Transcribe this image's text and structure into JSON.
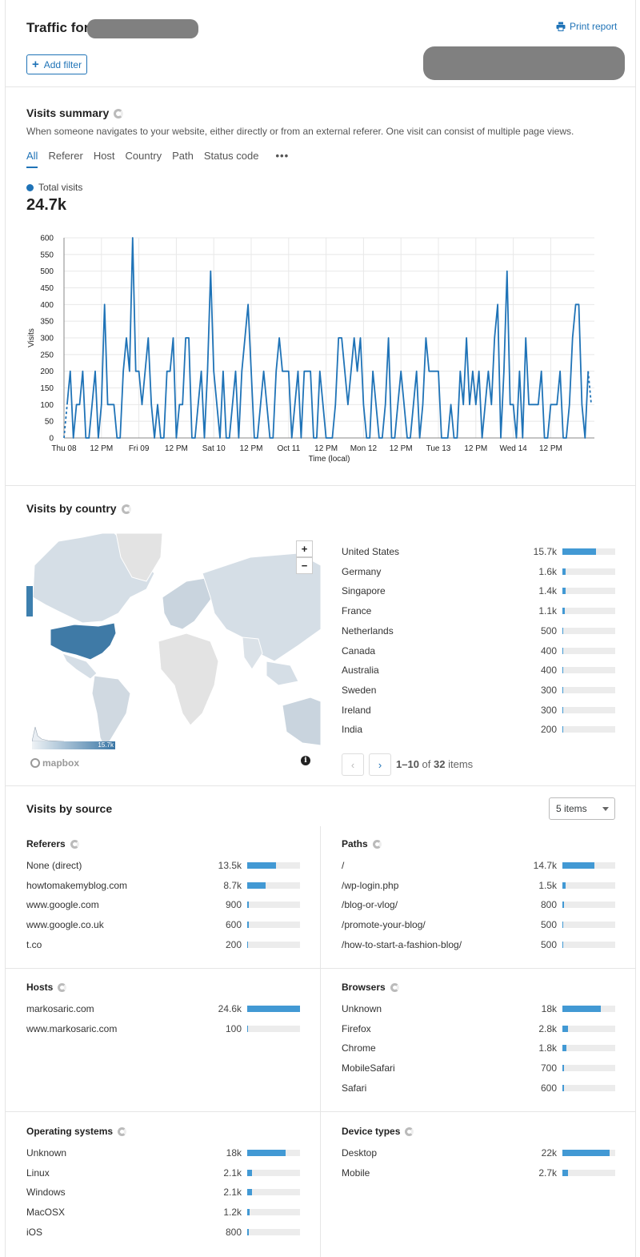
{
  "header": {
    "title": "Traffic for",
    "print_label": "Print report",
    "add_filter_label": "Add filter"
  },
  "visits_summary": {
    "title": "Visits summary",
    "description": "When someone navigates to your website, either directly or from an external referer. One visit can consist of multiple page views.",
    "tabs": [
      "All",
      "Referer",
      "Host",
      "Country",
      "Path",
      "Status code"
    ],
    "active_tab": "All",
    "legend_label": "Total visits",
    "total": "24.7k"
  },
  "chart_data": {
    "type": "line",
    "title": "",
    "ylabel": "Visits",
    "xlabel": "Time (local)",
    "ylim": [
      0,
      600
    ],
    "yticks": [
      0,
      50,
      100,
      150,
      200,
      250,
      300,
      350,
      400,
      450,
      500,
      550,
      600
    ],
    "xtick_labels": [
      "Thu 08",
      "12 PM",
      "Fri 09",
      "12 PM",
      "Sat 10",
      "12 PM",
      "Oct 11",
      "12 PM",
      "Mon 12",
      "12 PM",
      "Tue 13",
      "12 PM",
      "Wed 14",
      "12 PM"
    ],
    "x_unit": "hours since Thu 08 00:00",
    "x_range": [
      0,
      170
    ],
    "series": [
      {
        "name": "Total visits",
        "color": "#1f73b7",
        "x": [
          0,
          1,
          2,
          3,
          4,
          5,
          6,
          7,
          8,
          9,
          10,
          11,
          12,
          13,
          14,
          15,
          16,
          17,
          18,
          19,
          20,
          21,
          22,
          23,
          24,
          25,
          26,
          27,
          28,
          29,
          30,
          31,
          32,
          33,
          34,
          35,
          36,
          37,
          38,
          39,
          40,
          41,
          42,
          43,
          44,
          45,
          46,
          47,
          48,
          49,
          50,
          51,
          52,
          53,
          54,
          55,
          56,
          57,
          58,
          59,
          60,
          61,
          62,
          63,
          64,
          65,
          66,
          67,
          68,
          69,
          70,
          71,
          72,
          73,
          74,
          75,
          76,
          77,
          78,
          79,
          80,
          81,
          82,
          83,
          84,
          85,
          86,
          87,
          88,
          89,
          90,
          91,
          92,
          93,
          94,
          95,
          96,
          97,
          98,
          99,
          100,
          101,
          102,
          103,
          104,
          105,
          106,
          107,
          108,
          109,
          110,
          111,
          112,
          113,
          114,
          115,
          116,
          117,
          118,
          119,
          120,
          121,
          122,
          123,
          124,
          125,
          126,
          127,
          128,
          129,
          130,
          131,
          132,
          133,
          134,
          135,
          136,
          137,
          138,
          139,
          140,
          141,
          142,
          143,
          144,
          145,
          146,
          147,
          148,
          149,
          150,
          151,
          152,
          153,
          154,
          155,
          156,
          157,
          158,
          159,
          160,
          161,
          162,
          163,
          164,
          165,
          166,
          167,
          168,
          169
        ],
        "values": [
          0,
          100,
          200,
          0,
          100,
          100,
          200,
          0,
          0,
          100,
          200,
          0,
          100,
          400,
          100,
          100,
          100,
          0,
          0,
          200,
          300,
          200,
          600,
          200,
          200,
          100,
          200,
          300,
          100,
          0,
          100,
          0,
          0,
          200,
          200,
          300,
          0,
          100,
          100,
          300,
          300,
          0,
          0,
          100,
          200,
          0,
          200,
          500,
          200,
          100,
          0,
          200,
          0,
          0,
          100,
          200,
          0,
          200,
          300,
          400,
          200,
          0,
          0,
          100,
          200,
          100,
          0,
          0,
          200,
          300,
          200,
          200,
          200,
          0,
          100,
          200,
          0,
          200,
          200,
          200,
          0,
          0,
          200,
          100,
          0,
          0,
          0,
          100,
          300,
          300,
          200,
          100,
          200,
          300,
          200,
          300,
          100,
          0,
          0,
          200,
          100,
          0,
          0,
          100,
          300,
          0,
          0,
          100,
          200,
          100,
          0,
          0,
          100,
          200,
          0,
          100,
          300,
          200,
          200,
          200,
          200,
          0,
          0,
          0,
          100,
          0,
          0,
          200,
          100,
          300,
          100,
          200,
          100,
          200,
          0,
          100,
          200,
          100,
          300,
          400,
          0,
          200,
          500,
          100,
          100,
          0,
          200,
          0,
          300,
          100,
          100,
          100,
          100,
          200,
          0,
          0,
          100,
          100,
          100,
          200,
          0,
          0,
          100,
          300,
          400,
          400,
          100,
          0,
          200,
          100
        ]
      }
    ]
  },
  "country": {
    "title": "Visits by country",
    "map_max_label": "15.7k",
    "map_attribution": "mapbox",
    "zoom_in": "+",
    "zoom_out": "−",
    "items": [
      {
        "name": "United States",
        "value": "15.7k",
        "fraction": 0.64
      },
      {
        "name": "Germany",
        "value": "1.6k",
        "fraction": 0.065
      },
      {
        "name": "Singapore",
        "value": "1.4k",
        "fraction": 0.057
      },
      {
        "name": "France",
        "value": "1.1k",
        "fraction": 0.045
      },
      {
        "name": "Netherlands",
        "value": "500",
        "fraction": 0.02
      },
      {
        "name": "Canada",
        "value": "400",
        "fraction": 0.016
      },
      {
        "name": "Australia",
        "value": "400",
        "fraction": 0.016
      },
      {
        "name": "Sweden",
        "value": "300",
        "fraction": 0.012
      },
      {
        "name": "Ireland",
        "value": "300",
        "fraction": 0.012
      },
      {
        "name": "India",
        "value": "200",
        "fraction": 0.008
      }
    ],
    "pager_range": "1–10",
    "pager_of": "of",
    "pager_total": "32",
    "pager_items": "items"
  },
  "sources": {
    "title": "Visits by source",
    "select_value": "5 items",
    "panels": [
      {
        "title": "Referers",
        "rows": [
          {
            "label": "None (direct)",
            "value": "13.5k",
            "fraction": 0.55
          },
          {
            "label": "howtomakemyblog.com",
            "value": "8.7k",
            "fraction": 0.35
          },
          {
            "label": "www.google.com",
            "value": "900",
            "fraction": 0.036
          },
          {
            "label": "www.google.co.uk",
            "value": "600",
            "fraction": 0.024
          },
          {
            "label": "t.co",
            "value": "200",
            "fraction": 0.008
          }
        ]
      },
      {
        "title": "Paths",
        "rows": [
          {
            "label": "/",
            "value": "14.7k",
            "fraction": 0.6
          },
          {
            "label": "/wp-login.php",
            "value": "1.5k",
            "fraction": 0.06
          },
          {
            "label": "/blog-or-vlog/",
            "value": "800",
            "fraction": 0.032
          },
          {
            "label": "/promote-your-blog/",
            "value": "500",
            "fraction": 0.02
          },
          {
            "label": "/how-to-start-a-fashion-blog/",
            "value": "500",
            "fraction": 0.02
          }
        ]
      },
      {
        "title": "Hosts",
        "rows": [
          {
            "label": "markosaric.com",
            "value": "24.6k",
            "fraction": 1.0
          },
          {
            "label": "www.markosaric.com",
            "value": "100",
            "fraction": 0.004
          }
        ]
      },
      {
        "title": "Browsers",
        "rows": [
          {
            "label": "Unknown",
            "value": "18k",
            "fraction": 0.73
          },
          {
            "label": "Firefox",
            "value": "2.8k",
            "fraction": 0.11
          },
          {
            "label": "Chrome",
            "value": "1.8k",
            "fraction": 0.073
          },
          {
            "label": "MobileSafari",
            "value": "700",
            "fraction": 0.028
          },
          {
            "label": "Safari",
            "value": "600",
            "fraction": 0.024
          }
        ]
      },
      {
        "title": "Operating systems",
        "rows": [
          {
            "label": "Unknown",
            "value": "18k",
            "fraction": 0.73
          },
          {
            "label": "Linux",
            "value": "2.1k",
            "fraction": 0.085
          },
          {
            "label": "Windows",
            "value": "2.1k",
            "fraction": 0.085
          },
          {
            "label": "MacOSX",
            "value": "1.2k",
            "fraction": 0.049
          },
          {
            "label": "iOS",
            "value": "800",
            "fraction": 0.032
          }
        ]
      },
      {
        "title": "Device types",
        "rows": [
          {
            "label": "Desktop",
            "value": "22k",
            "fraction": 0.89
          },
          {
            "label": "Mobile",
            "value": "2.7k",
            "fraction": 0.11
          }
        ]
      }
    ]
  }
}
